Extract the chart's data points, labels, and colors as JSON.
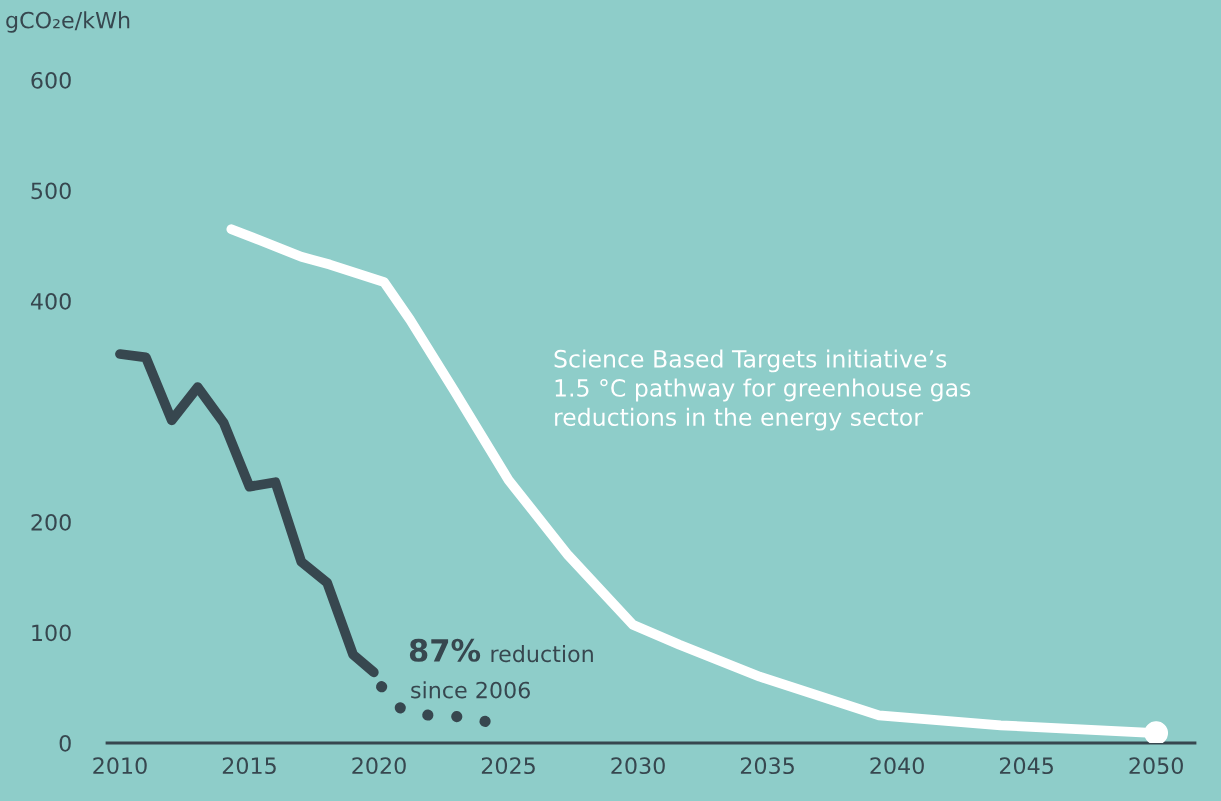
{
  "chart_data": {
    "type": "line",
    "ylabel": "gCO₂e/kWh",
    "xlim": [
      2009.5,
      2051.5
    ],
    "xticks": [
      2010,
      2015,
      2020,
      2025,
      2030,
      2035,
      2040,
      2045,
      2050
    ],
    "ylim": [
      0,
      600
    ],
    "yticks": [
      0,
      100,
      200,
      400,
      500,
      600
    ],
    "grid": false,
    "legend": false,
    "marker": "none",
    "series": [
      {
        "color": "#37474f",
        "line_style": "solid",
        "x": [
          2010,
          2011,
          2012,
          2013,
          2014,
          2015,
          2016,
          2017,
          2018,
          2019,
          2019.8
        ],
        "values": [
          352,
          349,
          292,
          322,
          290,
          232,
          236,
          164,
          145,
          80,
          64
        ]
      },
      {
        "color": "#37474f",
        "line_style": "dotted",
        "x": [
          2020.1,
          2020.5,
          2021.2,
          2022,
          2022.9,
          2023.7,
          2024.4
        ],
        "values": [
          51,
          36,
          27,
          25,
          24,
          23,
          17
        ]
      },
      {
        "color": "#ffffff",
        "line_style": "solid",
        "x": [
          2014.3,
          2015.4,
          2017,
          2018.1,
          2020.2,
          2021.2,
          2022.9,
          2025,
          2027.3,
          2029.8,
          2031.6,
          2034.7,
          2039.3,
          2044,
          2050
        ],
        "values": [
          465,
          455,
          440,
          433,
          417,
          383,
          319,
          238,
          170,
          107,
          89,
          60,
          25,
          16,
          9
        ]
      },
      {
        "type": "scatter",
        "color": "#ffffff",
        "marker": "circle",
        "x": [
          2050
        ],
        "values": [
          9
        ]
      }
    ],
    "annotations": [
      "Science Based Targets initiative’s\n1.5 °C pathway for greenhouse gas\nreductions in the energy sector",
      "87%",
      "reduction",
      "since 2006"
    ]
  }
}
